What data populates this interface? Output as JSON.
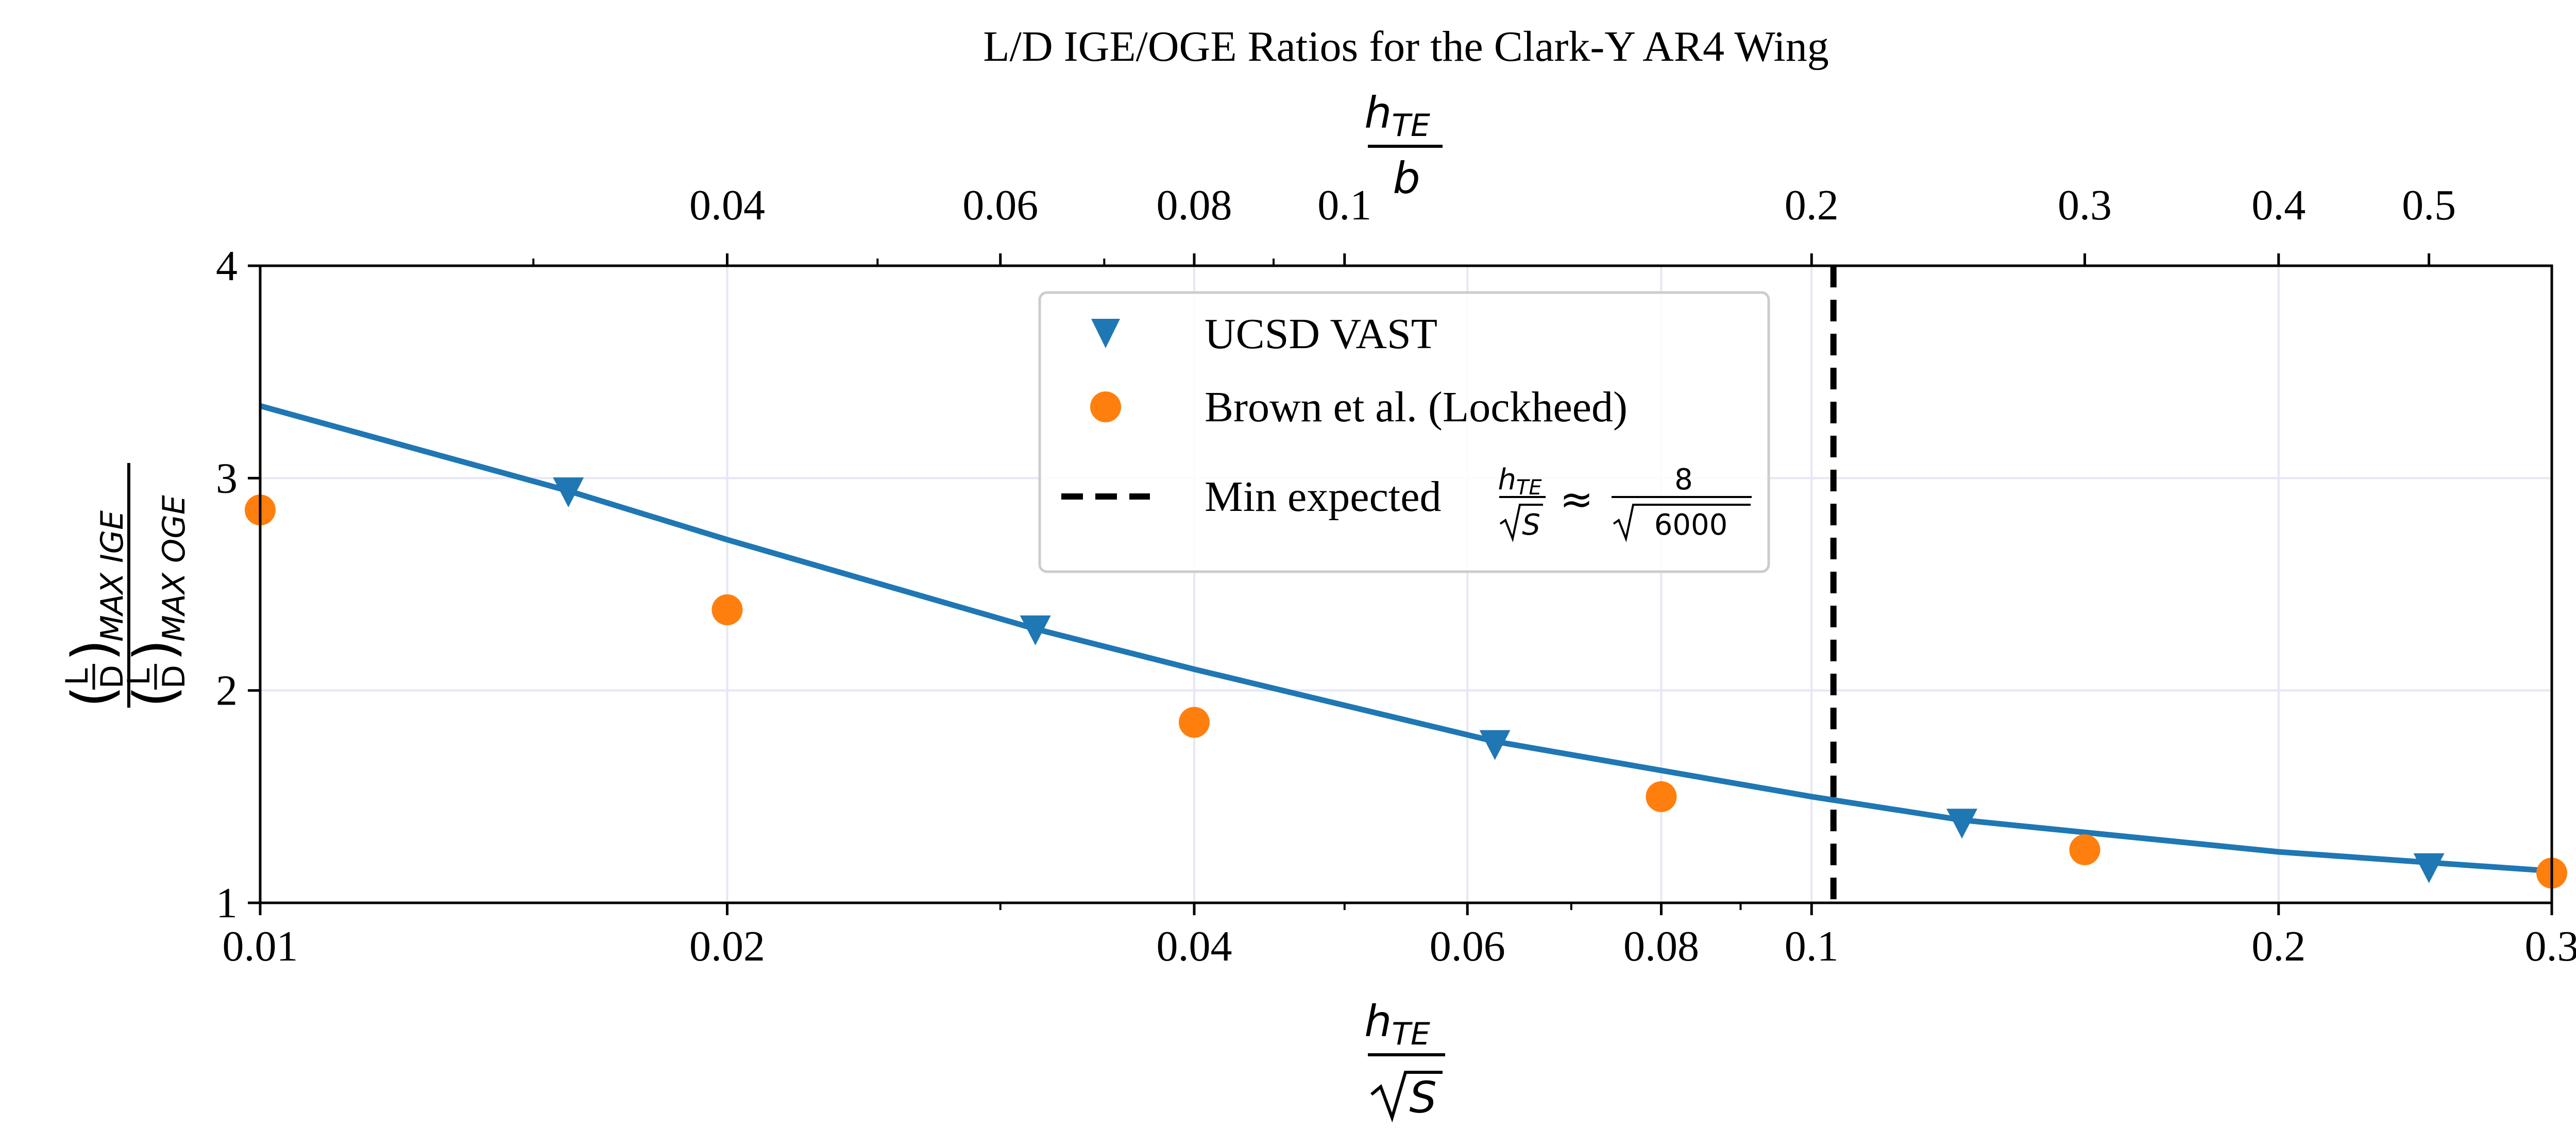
{
  "chart_data": {
    "type": "scatter",
    "title": "L/D IGE/OGE Ratios for the Clark-Y AR4 Wing",
    "x_axis": {
      "scale": "log",
      "xlim": [
        0.01,
        0.3
      ],
      "ticks": [
        0.01,
        0.02,
        0.04,
        0.06,
        0.08,
        0.1,
        0.2,
        0.3
      ],
      "tick_labels": [
        "0.01",
        "0.02",
        "0.04",
        "0.06",
        "0.08",
        "0.1",
        "0.2",
        "0.3"
      ],
      "label_numerator": "h",
      "label_numerator_sub": "TE",
      "label_denominator": "S"
    },
    "y_axis": {
      "ylim": [
        1,
        4
      ],
      "ticks": [
        1,
        2,
        3,
        4
      ],
      "tick_labels": [
        "1",
        "2",
        "3",
        "4"
      ],
      "label_top_sub": "MAX IGE",
      "label_bottom_sub": "MAX OGE",
      "label_frac_num": "L",
      "label_frac_den": "D"
    },
    "top_axis": {
      "scale": "log",
      "xlim": [
        0.02,
        0.6
      ],
      "ticks": [
        0.04,
        0.06,
        0.08,
        0.1,
        0.2,
        0.3,
        0.4,
        0.5
      ],
      "tick_labels": [
        "0.04",
        "0.06",
        "0.08",
        "0.1",
        "0.2",
        "0.3",
        "0.4",
        "0.5"
      ],
      "label_numerator": "h",
      "label_numerator_sub": "TE",
      "label_denominator": "b"
    },
    "series": [
      {
        "name": "UCSD VAST",
        "marker": "triangle-down",
        "color": "#1f77b4",
        "x": [
          0.0158,
          0.0316,
          0.0625,
          0.125,
          0.25
        ],
        "y": [
          2.95,
          2.3,
          1.76,
          1.39,
          1.18
        ]
      },
      {
        "name": "Brown et al. (Lockheed)",
        "marker": "circle",
        "color": "#ff7f0e",
        "x": [
          0.01,
          0.02,
          0.04,
          0.08,
          0.15,
          0.3
        ],
        "y": [
          2.85,
          2.38,
          1.85,
          1.5,
          1.25,
          1.14
        ]
      },
      {
        "name": "UCSD VAST fit",
        "type": "line",
        "color": "#1f77b4",
        "x": [
          0.01,
          0.0158,
          0.02,
          0.0316,
          0.04,
          0.0625,
          0.1,
          0.125,
          0.2,
          0.25,
          0.3
        ],
        "y": [
          3.34,
          2.94,
          2.71,
          2.29,
          2.1,
          1.76,
          1.5,
          1.39,
          1.24,
          1.19,
          1.15
        ]
      }
    ],
    "vline": {
      "x": 0.1033,
      "color": "#000000",
      "style": "dashed",
      "label_prefix": "Min expected",
      "label_numerator": "h",
      "label_numerator_sub": "TE",
      "label_denominator": "S",
      "approx_symbol": "≈",
      "rhs_numerator": "8",
      "rhs_denominator": "6000"
    },
    "legend": {
      "location": "upper-center",
      "entries": [
        "UCSD VAST",
        "Brown et al. (Lockheed)",
        "Min expected"
      ]
    },
    "grid": true,
    "grid_color": "#e6e6f5"
  }
}
